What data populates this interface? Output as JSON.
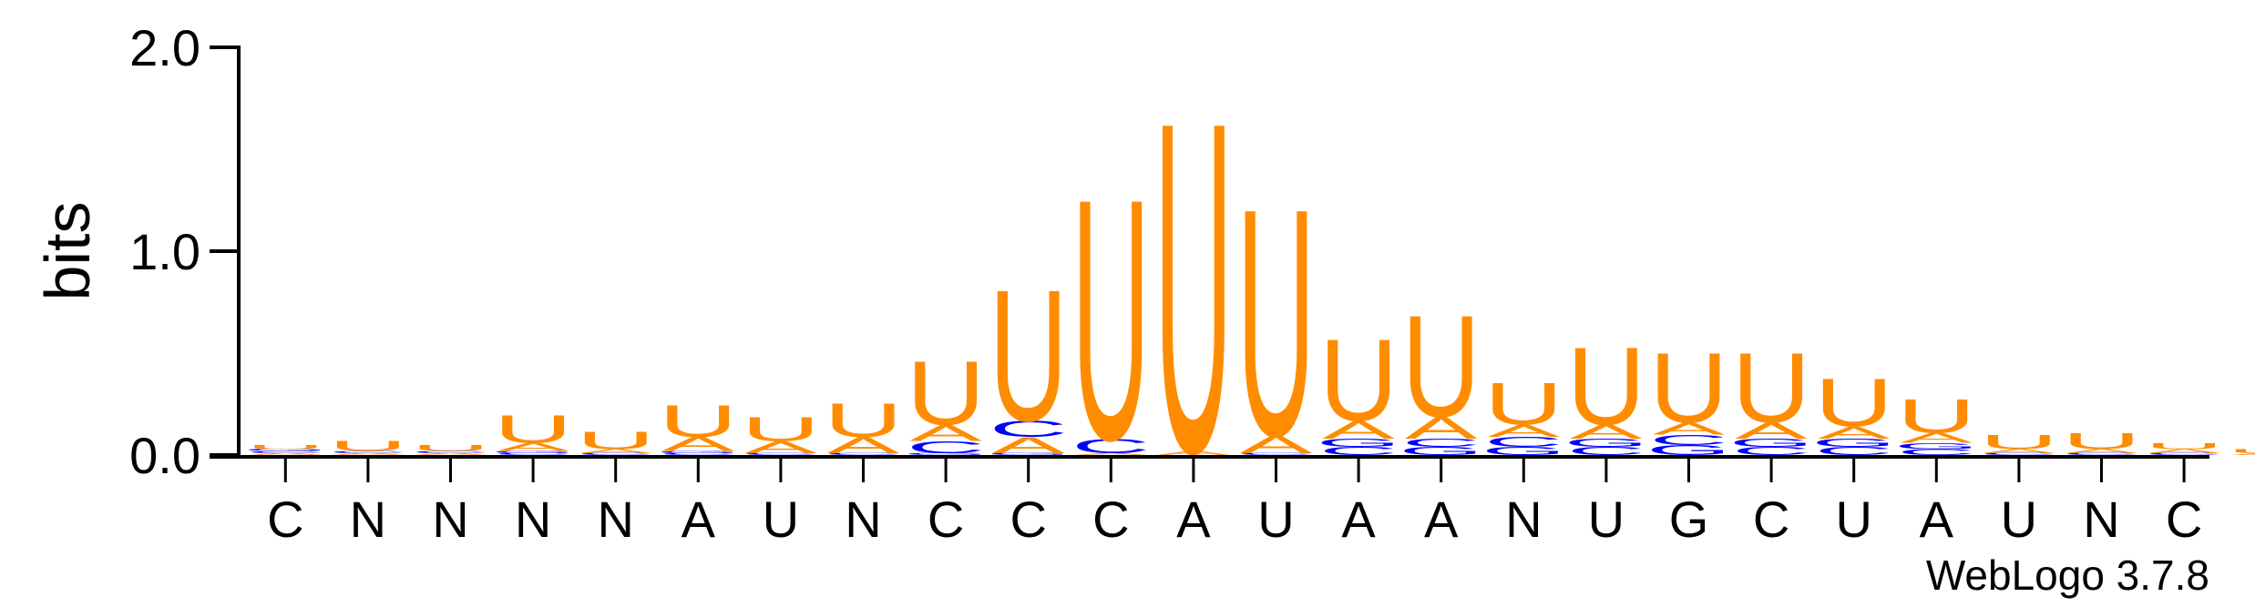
{
  "chart_data": {
    "type": "sequence-logo",
    "ylabel": "bits",
    "ylim": [
      0,
      2.0
    ],
    "yticks": [
      "0.0",
      "1.0",
      "2.0"
    ],
    "colors": {
      "U": "#FF8C00",
      "A": "#FF8C00",
      "C": "#0000FF",
      "G": "#0000FF"
    },
    "positions": [
      {
        "label": "C",
        "stack": [
          [
            "U",
            0.02
          ],
          [
            "A",
            0.01
          ],
          [
            "C",
            0.01
          ],
          [
            "G",
            0.01
          ]
        ]
      },
      {
        "label": "N",
        "stack": [
          [
            "U",
            0.05
          ],
          [
            "A",
            0.01
          ],
          [
            "C",
            0.01
          ]
        ]
      },
      {
        "label": "N",
        "stack": [
          [
            "U",
            0.03
          ],
          [
            "A",
            0.01
          ],
          [
            "C",
            0.01
          ]
        ]
      },
      {
        "label": "N",
        "stack": [
          [
            "U",
            0.14
          ],
          [
            "A",
            0.04
          ],
          [
            "C",
            0.01
          ],
          [
            "G",
            0.01
          ]
        ]
      },
      {
        "label": "N",
        "stack": [
          [
            "U",
            0.09
          ],
          [
            "A",
            0.02
          ],
          [
            "C",
            0.01
          ]
        ]
      },
      {
        "label": "A",
        "stack": [
          [
            "U",
            0.16
          ],
          [
            "A",
            0.07
          ],
          [
            "C",
            0.01
          ],
          [
            "G",
            0.01
          ]
        ]
      },
      {
        "label": "U",
        "stack": [
          [
            "U",
            0.12
          ],
          [
            "A",
            0.06
          ],
          [
            "C",
            0.01
          ]
        ]
      },
      {
        "label": "N",
        "stack": [
          [
            "U",
            0.17
          ],
          [
            "A",
            0.08
          ],
          [
            "C",
            0.01
          ]
        ]
      },
      {
        "label": "C",
        "stack": [
          [
            "U",
            0.32
          ],
          [
            "A",
            0.08
          ],
          [
            "C",
            0.06
          ],
          [
            "G",
            0.01
          ]
        ]
      },
      {
        "label": "C",
        "stack": [
          [
            "U",
            0.66
          ],
          [
            "A",
            0.08
          ],
          [
            "C",
            0.08
          ],
          [
            "G",
            0.01
          ]
        ]
      },
      {
        "label": "C",
        "stack": [
          [
            "U",
            1.21
          ],
          [
            "C",
            0.07
          ],
          [
            "A",
            0.01
          ]
        ]
      },
      {
        "label": "A",
        "stack": [
          [
            "U",
            1.66
          ],
          [
            "A",
            0.02
          ]
        ]
      },
      {
        "label": "U",
        "stack": [
          [
            "U",
            1.14
          ],
          [
            "A",
            0.09
          ],
          [
            "C",
            0.01
          ]
        ]
      },
      {
        "label": "A",
        "stack": [
          [
            "U",
            0.41
          ],
          [
            "A",
            0.09
          ],
          [
            "C",
            0.04
          ],
          [
            "G",
            0.04
          ]
        ]
      },
      {
        "label": "A",
        "stack": [
          [
            "U",
            0.51
          ],
          [
            "A",
            0.11
          ],
          [
            "G",
            0.04
          ],
          [
            "C",
            0.04
          ]
        ]
      },
      {
        "label": "N",
        "stack": [
          [
            "U",
            0.21
          ],
          [
            "A",
            0.06
          ],
          [
            "C",
            0.05
          ],
          [
            "G",
            0.04
          ]
        ]
      },
      {
        "label": "U",
        "stack": [
          [
            "U",
            0.39
          ],
          [
            "A",
            0.07
          ],
          [
            "C",
            0.04
          ],
          [
            "G",
            0.04
          ]
        ]
      },
      {
        "label": "G",
        "stack": [
          [
            "U",
            0.35
          ],
          [
            "A",
            0.06
          ],
          [
            "G",
            0.05
          ],
          [
            "C",
            0.05
          ]
        ]
      },
      {
        "label": "C",
        "stack": [
          [
            "U",
            0.35
          ],
          [
            "A",
            0.08
          ],
          [
            "C",
            0.04
          ],
          [
            "G",
            0.04
          ]
        ]
      },
      {
        "label": "U",
        "stack": [
          [
            "U",
            0.24
          ],
          [
            "A",
            0.06
          ],
          [
            "C",
            0.04
          ],
          [
            "G",
            0.04
          ]
        ]
      },
      {
        "label": "A",
        "stack": [
          [
            "U",
            0.17
          ],
          [
            "A",
            0.05
          ],
          [
            "C",
            0.03
          ],
          [
            "G",
            0.03
          ]
        ]
      },
      {
        "label": "U",
        "stack": [
          [
            "U",
            0.07
          ],
          [
            "A",
            0.02
          ],
          [
            "C",
            0.01
          ]
        ]
      },
      {
        "label": "N",
        "stack": [
          [
            "U",
            0.08
          ],
          [
            "A",
            0.02
          ],
          [
            "C",
            0.01
          ]
        ]
      },
      {
        "label": "C",
        "stack": [
          [
            "U",
            0.03
          ],
          [
            "A",
            0.02
          ],
          [
            "C",
            0.01
          ]
        ]
      },
      {
        "label": "",
        "stack": [
          [
            "U",
            0.02
          ],
          [
            "A",
            0.01
          ]
        ]
      }
    ],
    "credit": "WebLogo 3.7.8"
  }
}
